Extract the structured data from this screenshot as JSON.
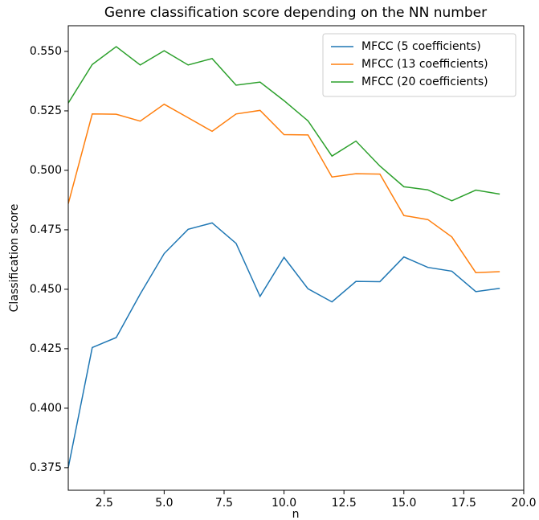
{
  "chart_data": {
    "type": "line",
    "title": "Genre classification score depending on the NN number",
    "xlabel": "n",
    "ylabel": "Classification score",
    "x": [
      1,
      2,
      3,
      4,
      5,
      6,
      7,
      8,
      9,
      10,
      11,
      12,
      13,
      14,
      15,
      16,
      17,
      18,
      19
    ],
    "series": [
      {
        "name": "MFCC (5 coefficients)",
        "color": "#1f77b4",
        "values": [
          0.375,
          0.4255,
          0.4297,
          0.448,
          0.465,
          0.4752,
          0.4779,
          0.4693,
          0.447,
          0.4634,
          0.4502,
          0.4447,
          0.4533,
          0.4532,
          0.4636,
          0.4592,
          0.4576,
          0.449,
          0.4504
        ]
      },
      {
        "name": "MFCC (13 coefficients)",
        "color": "#ff7f0e",
        "values": [
          0.486,
          0.5237,
          0.5236,
          0.5207,
          0.5278,
          0.5221,
          0.5164,
          0.5237,
          0.5252,
          0.515,
          0.5149,
          0.4972,
          0.4986,
          0.4984,
          0.481,
          0.4793,
          0.472,
          0.457,
          0.4574
        ]
      },
      {
        "name": "MFCC (20 coefficients)",
        "color": "#2ca02c",
        "values": [
          0.5283,
          0.5445,
          0.552,
          0.5443,
          0.5503,
          0.5443,
          0.547,
          0.5358,
          0.5371,
          0.5293,
          0.5208,
          0.506,
          0.5123,
          0.5018,
          0.4931,
          0.4918,
          0.4872,
          0.4917,
          0.49
        ]
      }
    ],
    "xlim": [
      1,
      20
    ],
    "xticks": [
      2.5,
      {
        "value": 5,
        "label": "5.0"
      },
      7.5,
      {
        "value": 10,
        "label": "10.0"
      },
      12.5,
      {
        "value": 15,
        "label": "15.0"
      },
      17.5,
      {
        "value": 20,
        "label": "20.0"
      }
    ],
    "ylim": [
      0.3655,
      0.5608
    ],
    "yticks": [
      0.375,
      {
        "value": 0.4,
        "label": "0.400"
      },
      0.425,
      {
        "value": 0.45,
        "label": "0.450"
      },
      0.475,
      {
        "value": 0.5,
        "label": "0.500"
      },
      0.525,
      {
        "value": 0.55,
        "label": "0.550"
      }
    ],
    "legend": "upper right",
    "grid": false
  }
}
